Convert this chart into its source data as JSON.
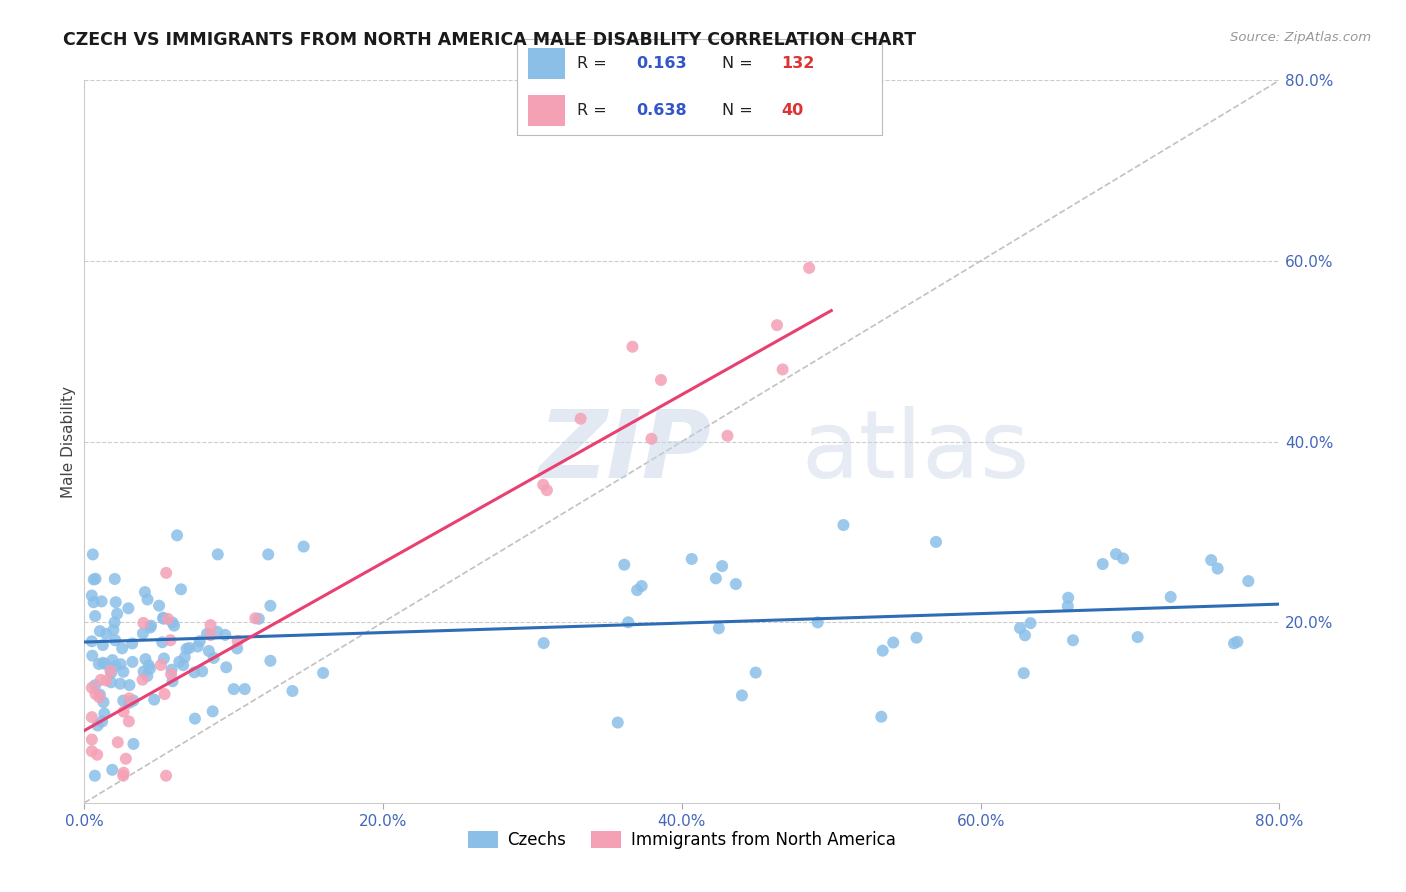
{
  "title": "CZECH VS IMMIGRANTS FROM NORTH AMERICA MALE DISABILITY CORRELATION CHART",
  "source_text": "Source: ZipAtlas.com",
  "ylabel": "Male Disability",
  "xlim": [
    0.0,
    0.8
  ],
  "ylim": [
    0.0,
    0.8
  ],
  "x_ticks": [
    0.0,
    0.2,
    0.4,
    0.6,
    0.8
  ],
  "y_ticks": [
    0.2,
    0.4,
    0.6,
    0.8
  ],
  "x_tick_labels": [
    "0.0%",
    "20.0%",
    "40.0%",
    "60.0%",
    "80.0%"
  ],
  "y_tick_labels": [
    "20.0%",
    "40.0%",
    "60.0%",
    "80.0%"
  ],
  "czechs_color": "#8BBFE8",
  "immigrants_color": "#F4A0B5",
  "czechs_line_color": "#2E6DB5",
  "immigrants_line_color": "#E84070",
  "diag_line_color": "#BBBBBB",
  "R_czechs": 0.163,
  "N_czechs": 132,
  "R_immigrants": 0.638,
  "N_immigrants": 40,
  "legend_labels": [
    "Czechs",
    "Immigrants from North America"
  ],
  "czech_trend_x0": 0.0,
  "czech_trend_y0": 0.178,
  "czech_trend_x1": 0.8,
  "czech_trend_y1": 0.22,
  "immig_trend_x0": 0.0,
  "immig_trend_y0": 0.08,
  "immig_trend_x1": 0.5,
  "immig_trend_y1": 0.545
}
